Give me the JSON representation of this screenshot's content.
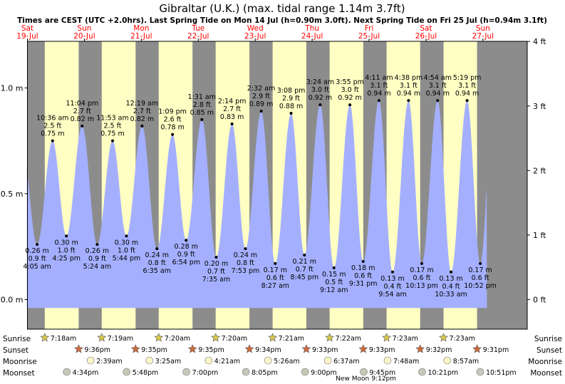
{
  "title": "Gibraltar (U.K.) (max. tidal range 1.14m 3.7ft)",
  "subtitle": "Times are CEST (UTC +2.0hrs). Last Spring Tide on Mon 14 Jul (h=0.90m 3.0ft). Next Spring Tide on Fri 25 Jul (h=0.94m 3.1ft)",
  "colors": {
    "night": "#8c8c8c",
    "day": "#ffffc4",
    "tide": "#a4b0ff",
    "day_label": "#ff0000",
    "frame": "#000000",
    "sun_icon": "#d9c84c",
    "sunset_icon": "#d06a3c",
    "moonrise_icon": "#fbf6c8",
    "moonset_icon": "#c8c8b8"
  },
  "chart_data": {
    "type": "area",
    "x_unit": "hours from 00:00 on Sat 19 Jul (CEST)",
    "ylim": [
      -0.14,
      1.22
    ],
    "left_ticks": [
      "0.0 m",
      "0.5 m",
      "1.0 m"
    ],
    "left_tick_values": [
      0,
      0.5,
      1.0
    ],
    "right_ticks": [
      "0 ft",
      "1 ft",
      "2 ft",
      "3 ft",
      "4 ft"
    ],
    "right_tick_values": [
      0,
      0.3048,
      0.6096,
      0.9144,
      1.2192
    ],
    "days": [
      {
        "dow": "Sat",
        "date": "19-Jul"
      },
      {
        "dow": "Sun",
        "date": "20-Jul"
      },
      {
        "dow": "Mon",
        "date": "21-Jul"
      },
      {
        "dow": "Tue",
        "date": "22-Jul"
      },
      {
        "dow": "Wed",
        "date": "23-Jul"
      },
      {
        "dow": "Thu",
        "date": "24-Jul"
      },
      {
        "dow": "Fri",
        "date": "25-Jul"
      },
      {
        "dow": "Sat",
        "date": "26-Jul"
      },
      {
        "dow": "Sun",
        "date": "27-Jul"
      }
    ],
    "daylight": [
      {
        "rise": 7.3,
        "set": 21.6
      },
      {
        "rise": 31.317,
        "set": 45.583
      },
      {
        "rise": 55.333,
        "set": 69.583
      },
      {
        "rise": 79.333,
        "set": 93.567
      },
      {
        "rise": 103.35,
        "set": 117.55
      },
      {
        "rise": 127.367,
        "set": 141.55
      },
      {
        "rise": 151.383,
        "set": 165.533
      },
      {
        "rise": 175.383,
        "set": 189.517
      }
    ],
    "tides": [
      {
        "x": 4.083,
        "h": 0.26,
        "type": "low",
        "time": "4:05 am",
        "m": "0.26 m",
        "ft": "0.9 ft"
      },
      {
        "x": 10.6,
        "h": 0.75,
        "type": "high",
        "time": "10:36 am",
        "m": "0.75 m",
        "ft": "2.5 ft"
      },
      {
        "x": 16.417,
        "h": 0.3,
        "type": "low",
        "time": "4:25 pm",
        "m": "0.30 m",
        "ft": "1.0 ft"
      },
      {
        "x": 23.067,
        "h": 0.82,
        "type": "high",
        "time": "11:04 pm",
        "m": "0.82 m",
        "ft": "2.7 ft"
      },
      {
        "x": 29.4,
        "h": 0.26,
        "type": "low",
        "time": "5:24 am",
        "m": "0.26 m",
        "ft": "0.9 ft"
      },
      {
        "x": 35.883,
        "h": 0.75,
        "type": "high",
        "time": "11:53 am",
        "m": "0.75 m",
        "ft": "2.5 ft"
      },
      {
        "x": 41.733,
        "h": 0.3,
        "type": "low",
        "time": "5:44 pm",
        "m": "0.30 m",
        "ft": "1.0 ft"
      },
      {
        "x": 48.317,
        "h": 0.82,
        "type": "high",
        "time": "12:19 am",
        "m": "0.82 m",
        "ft": "2.7 ft"
      },
      {
        "x": 54.583,
        "h": 0.24,
        "type": "low",
        "time": "6:35 am",
        "m": "0.24 m",
        "ft": "0.8 ft"
      },
      {
        "x": 61.15,
        "h": 0.78,
        "type": "high",
        "time": "1:09 pm",
        "m": "0.78 m",
        "ft": "2.6 ft"
      },
      {
        "x": 66.9,
        "h": 0.28,
        "type": "low",
        "time": "6:54 pm",
        "m": "0.28 m",
        "ft": "0.9 ft"
      },
      {
        "x": 73.517,
        "h": 0.85,
        "type": "high",
        "time": "1:31 am",
        "m": "0.85 m",
        "ft": "2.8 ft"
      },
      {
        "x": 79.583,
        "h": 0.2,
        "type": "low",
        "time": "7:35 am",
        "m": "0.20 m",
        "ft": "0.7 ft"
      },
      {
        "x": 86.233,
        "h": 0.83,
        "type": "high",
        "time": "2:14 pm",
        "m": "0.83 m",
        "ft": "2.7 ft"
      },
      {
        "x": 91.883,
        "h": 0.24,
        "type": "low",
        "time": "7:53 pm",
        "m": "0.24 m",
        "ft": "0.8 ft"
      },
      {
        "x": 98.533,
        "h": 0.89,
        "type": "high",
        "time": "2:32 am",
        "m": "0.89 m",
        "ft": "2.9 ft"
      },
      {
        "x": 104.45,
        "h": 0.17,
        "type": "low",
        "time": "8:27 am",
        "m": "0.17 m",
        "ft": "0.6 ft"
      },
      {
        "x": 111.133,
        "h": 0.88,
        "type": "high",
        "time": "3:08 pm",
        "m": "0.88 m",
        "ft": "2.9 ft"
      },
      {
        "x": 116.75,
        "h": 0.21,
        "type": "low",
        "time": "8:45 pm",
        "m": "0.21 m",
        "ft": "0.7 ft"
      },
      {
        "x": 123.4,
        "h": 0.92,
        "type": "high",
        "time": "3:24 am",
        "m": "0.92 m",
        "ft": "3.0 ft"
      },
      {
        "x": 129.2,
        "h": 0.15,
        "type": "low",
        "time": "9:12 am",
        "m": "0.15 m",
        "ft": "0.5 ft"
      },
      {
        "x": 135.917,
        "h": 0.92,
        "type": "high",
        "time": "3:55 pm",
        "m": "0.92 m",
        "ft": "3.0 ft"
      },
      {
        "x": 141.517,
        "h": 0.18,
        "type": "low",
        "time": "9:31 pm",
        "m": "0.18 m",
        "ft": "0.6 ft"
      },
      {
        "x": 148.183,
        "h": 0.94,
        "type": "high",
        "time": "4:11 am",
        "m": "0.94 m",
        "ft": "3.1 ft"
      },
      {
        "x": 153.9,
        "h": 0.13,
        "type": "low",
        "time": "9:54 am",
        "m": "0.13 m",
        "ft": "0.4 ft"
      },
      {
        "x": 160.633,
        "h": 0.94,
        "type": "high",
        "time": "4:38 pm",
        "m": "0.94 m",
        "ft": "3.1 ft"
      },
      {
        "x": 166.217,
        "h": 0.17,
        "type": "low",
        "time": "10:13 pm",
        "m": "0.17 m",
        "ft": "0.6 ft"
      },
      {
        "x": 172.9,
        "h": 0.94,
        "type": "high",
        "time": "4:54 am",
        "m": "0.94 m",
        "ft": "3.1 ft"
      },
      {
        "x": 178.55,
        "h": 0.13,
        "type": "low",
        "time": "10:33 am",
        "m": "0.13 m",
        "ft": "0.4 ft"
      },
      {
        "x": 185.317,
        "h": 0.94,
        "type": "high",
        "time": "5:19 pm",
        "m": "0.94 m",
        "ft": "3.1 ft"
      },
      {
        "x": 190.867,
        "h": 0.17,
        "type": "low",
        "time": "10:52 pm",
        "m": "0.17 m",
        "ft": "0.6 ft"
      }
    ]
  },
  "ephemeris": {
    "row_labels": [
      "Sunrise",
      "Sunset",
      "Moonrise",
      "Moonset"
    ],
    "sunrise": [
      {
        "x": 7.3,
        "text": "7:18am"
      },
      {
        "x": 31.317,
        "text": "7:19am"
      },
      {
        "x": 55.333,
        "text": "7:20am"
      },
      {
        "x": 79.333,
        "text": "7:20am"
      },
      {
        "x": 103.35,
        "text": "7:21am"
      },
      {
        "x": 127.367,
        "text": "7:22am"
      },
      {
        "x": 151.383,
        "text": "7:23am"
      },
      {
        "x": 175.383,
        "text": "7:23am"
      }
    ],
    "sunset": [
      {
        "x": 21.6,
        "text": "9:36pm"
      },
      {
        "x": 45.583,
        "text": "9:35pm"
      },
      {
        "x": 69.583,
        "text": "9:35pm"
      },
      {
        "x": 93.567,
        "text": "9:34pm"
      },
      {
        "x": 117.55,
        "text": "9:33pm"
      },
      {
        "x": 141.55,
        "text": "9:33pm"
      },
      {
        "x": 165.533,
        "text": "9:32pm"
      },
      {
        "x": 189.517,
        "text": "9:31pm"
      }
    ],
    "moonrise": [
      {
        "x": 26.65,
        "text": "2:39am"
      },
      {
        "x": 51.417,
        "text": "3:25am"
      },
      {
        "x": 76.35,
        "text": "4:21am"
      },
      {
        "x": 101.433,
        "text": "5:26am"
      },
      {
        "x": 126.617,
        "text": "6:37am"
      },
      {
        "x": 151.8,
        "text": "7:48am"
      },
      {
        "x": 176.95,
        "text": "8:57am"
      }
    ],
    "moonset": [
      {
        "x": 16.567,
        "text": "4:34pm"
      },
      {
        "x": 41.8,
        "text": "5:48pm"
      },
      {
        "x": 67.0,
        "text": "7:00pm"
      },
      {
        "x": 92.083,
        "text": "8:05pm"
      },
      {
        "x": 117.0,
        "text": "9:00pm"
      },
      {
        "x": 141.75,
        "text": "9:45pm"
      },
      {
        "x": 166.35,
        "text": "10:21pm"
      },
      {
        "x": 190.85,
        "text": "10:51pm"
      }
    ],
    "new_moon": {
      "x": 141.2,
      "line1": "New Moon",
      "line2": "9:12pm"
    }
  }
}
